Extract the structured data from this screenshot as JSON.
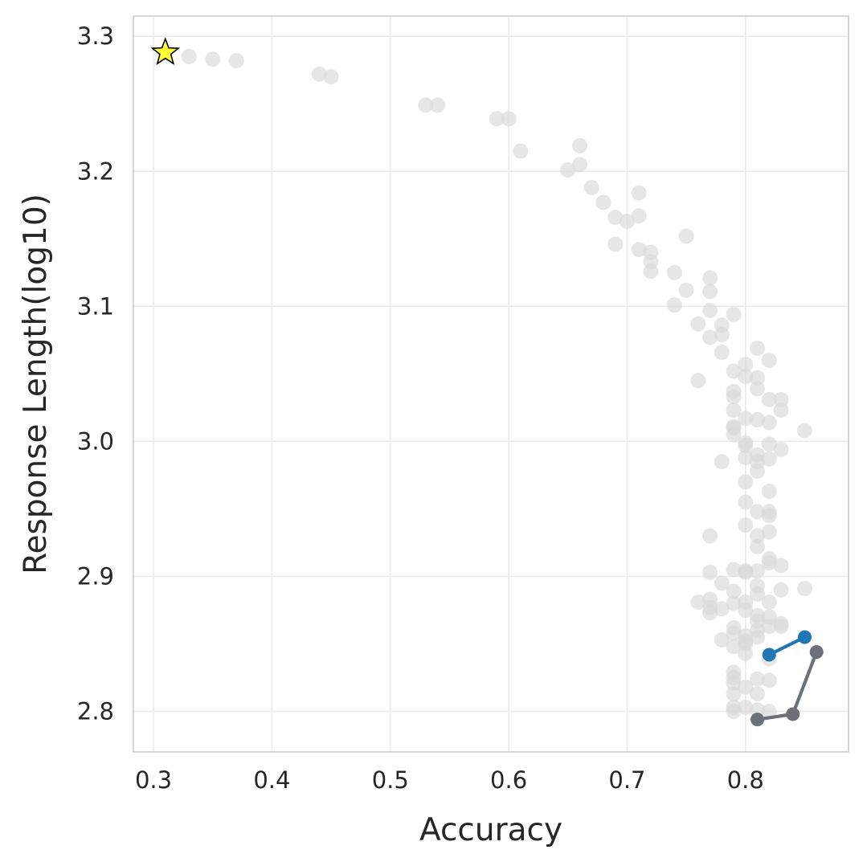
{
  "chart_data": {
    "type": "scatter",
    "title": "",
    "xlabel": "Accuracy",
    "ylabel": "Response Length(log10)",
    "xlim": [
      0.283,
      0.887
    ],
    "ylim": [
      2.77,
      3.315
    ],
    "grid": true,
    "legend": "none",
    "x_ticks": [
      "0.3",
      "0.4",
      "0.5",
      "0.6",
      "0.7",
      "0.8"
    ],
    "y_ticks": [
      "2.8",
      "2.9",
      "3.0",
      "3.1",
      "3.2",
      "3.3"
    ],
    "colors": {
      "background_points": "#d9d9d9",
      "blue_series": "#1f77b4",
      "gray_series": "#6b7079",
      "star_fill": "#ffff33",
      "star_edge": "#000000",
      "grid": "#ebebeb",
      "axes_edge": "#cccccc"
    },
    "background_points": [
      [
        0.33,
        3.285
      ],
      [
        0.35,
        3.283
      ],
      [
        0.37,
        3.282
      ],
      [
        0.44,
        3.272
      ],
      [
        0.45,
        3.27
      ],
      [
        0.53,
        3.249
      ],
      [
        0.54,
        3.249
      ],
      [
        0.59,
        3.239
      ],
      [
        0.6,
        3.239
      ],
      [
        0.61,
        3.215
      ],
      [
        0.66,
        3.219
      ],
      [
        0.66,
        3.205
      ],
      [
        0.65,
        3.201
      ],
      [
        0.67,
        3.188
      ],
      [
        0.68,
        3.177
      ],
      [
        0.69,
        3.166
      ],
      [
        0.7,
        3.163
      ],
      [
        0.71,
        3.184
      ],
      [
        0.71,
        3.167
      ],
      [
        0.69,
        3.146
      ],
      [
        0.71,
        3.142
      ],
      [
        0.72,
        3.14
      ],
      [
        0.72,
        3.133
      ],
      [
        0.72,
        3.126
      ],
      [
        0.75,
        3.152
      ],
      [
        0.74,
        3.125
      ],
      [
        0.75,
        3.112
      ],
      [
        0.74,
        3.101
      ],
      [
        0.77,
        3.121
      ],
      [
        0.77,
        3.111
      ],
      [
        0.77,
        3.097
      ],
      [
        0.79,
        3.094
      ],
      [
        0.76,
        3.087
      ],
      [
        0.78,
        3.086
      ],
      [
        0.78,
        3.079
      ],
      [
        0.77,
        3.077
      ],
      [
        0.78,
        3.066
      ],
      [
        0.81,
        3.069
      ],
      [
        0.82,
        3.06
      ],
      [
        0.8,
        3.057
      ],
      [
        0.79,
        3.052
      ],
      [
        0.8,
        3.048
      ],
      [
        0.81,
        3.047
      ],
      [
        0.76,
        3.045
      ],
      [
        0.81,
        3.039
      ],
      [
        0.79,
        3.037
      ],
      [
        0.79,
        3.033
      ],
      [
        0.82,
        3.031
      ],
      [
        0.83,
        3.031
      ],
      [
        0.83,
        3.023
      ],
      [
        0.79,
        3.023
      ],
      [
        0.8,
        3.017
      ],
      [
        0.81,
        3.016
      ],
      [
        0.82,
        3.014
      ],
      [
        0.79,
        3.011
      ],
      [
        0.79,
        3.01
      ],
      [
        0.85,
        3.008
      ],
      [
        0.79,
        3.005
      ],
      [
        0.8,
        2.999
      ],
      [
        0.8,
        2.997
      ],
      [
        0.82,
        2.998
      ],
      [
        0.83,
        2.994
      ],
      [
        0.81,
        2.99
      ],
      [
        0.8,
        2.988
      ],
      [
        0.82,
        2.987
      ],
      [
        0.81,
        2.985
      ],
      [
        0.78,
        2.985
      ],
      [
        0.81,
        2.978
      ],
      [
        0.8,
        2.97
      ],
      [
        0.82,
        2.963
      ],
      [
        0.8,
        2.955
      ],
      [
        0.81,
        2.948
      ],
      [
        0.82,
        2.948
      ],
      [
        0.82,
        2.945
      ],
      [
        0.8,
        2.938
      ],
      [
        0.82,
        2.933
      ],
      [
        0.77,
        2.93
      ],
      [
        0.81,
        2.93
      ],
      [
        0.81,
        2.922
      ],
      [
        0.82,
        2.913
      ],
      [
        0.82,
        2.91
      ],
      [
        0.83,
        2.908
      ],
      [
        0.79,
        2.905
      ],
      [
        0.8,
        2.904
      ],
      [
        0.8,
        2.903
      ],
      [
        0.81,
        2.904
      ],
      [
        0.77,
        2.903
      ],
      [
        0.78,
        2.895
      ],
      [
        0.81,
        2.893
      ],
      [
        0.81,
        2.887
      ],
      [
        0.85,
        2.891
      ],
      [
        0.83,
        2.89
      ],
      [
        0.79,
        2.889
      ],
      [
        0.76,
        2.881
      ],
      [
        0.77,
        2.883
      ],
      [
        0.79,
        2.88
      ],
      [
        0.8,
        2.881
      ],
      [
        0.82,
        2.881
      ],
      [
        0.77,
        2.877
      ],
      [
        0.78,
        2.876
      ],
      [
        0.8,
        2.875
      ],
      [
        0.81,
        2.871
      ],
      [
        0.77,
        2.873
      ],
      [
        0.82,
        2.87
      ],
      [
        0.81,
        2.867
      ],
      [
        0.82,
        2.863
      ],
      [
        0.83,
        2.865
      ],
      [
        0.83,
        2.863
      ],
      [
        0.79,
        2.862
      ],
      [
        0.81,
        2.86
      ],
      [
        0.79,
        2.858
      ],
      [
        0.8,
        2.856
      ],
      [
        0.81,
        2.855
      ],
      [
        0.78,
        2.853
      ],
      [
        0.8,
        2.852
      ],
      [
        0.8,
        2.85
      ],
      [
        0.79,
        2.848
      ],
      [
        0.8,
        2.843
      ],
      [
        0.82,
        2.839
      ],
      [
        0.79,
        2.829
      ],
      [
        0.79,
        2.825
      ],
      [
        0.81,
        2.824
      ],
      [
        0.82,
        2.823
      ],
      [
        0.79,
        2.821
      ],
      [
        0.8,
        2.818
      ],
      [
        0.81,
        2.813
      ],
      [
        0.79,
        2.813
      ],
      [
        0.8,
        2.803
      ],
      [
        0.82,
        2.8
      ],
      [
        0.79,
        2.803
      ],
      [
        0.79,
        2.8
      ],
      [
        0.81,
        2.801
      ]
    ],
    "series": [
      {
        "color": "#1f77b4",
        "x": [
          0.82,
          0.85
        ],
        "y": [
          2.842,
          2.855
        ]
      },
      {
        "color": "#6b7079",
        "x": [
          0.81,
          0.84,
          0.86
        ],
        "y": [
          2.794,
          2.798,
          2.844
        ]
      }
    ],
    "star_point": [
      0.31,
      3.288
    ]
  }
}
